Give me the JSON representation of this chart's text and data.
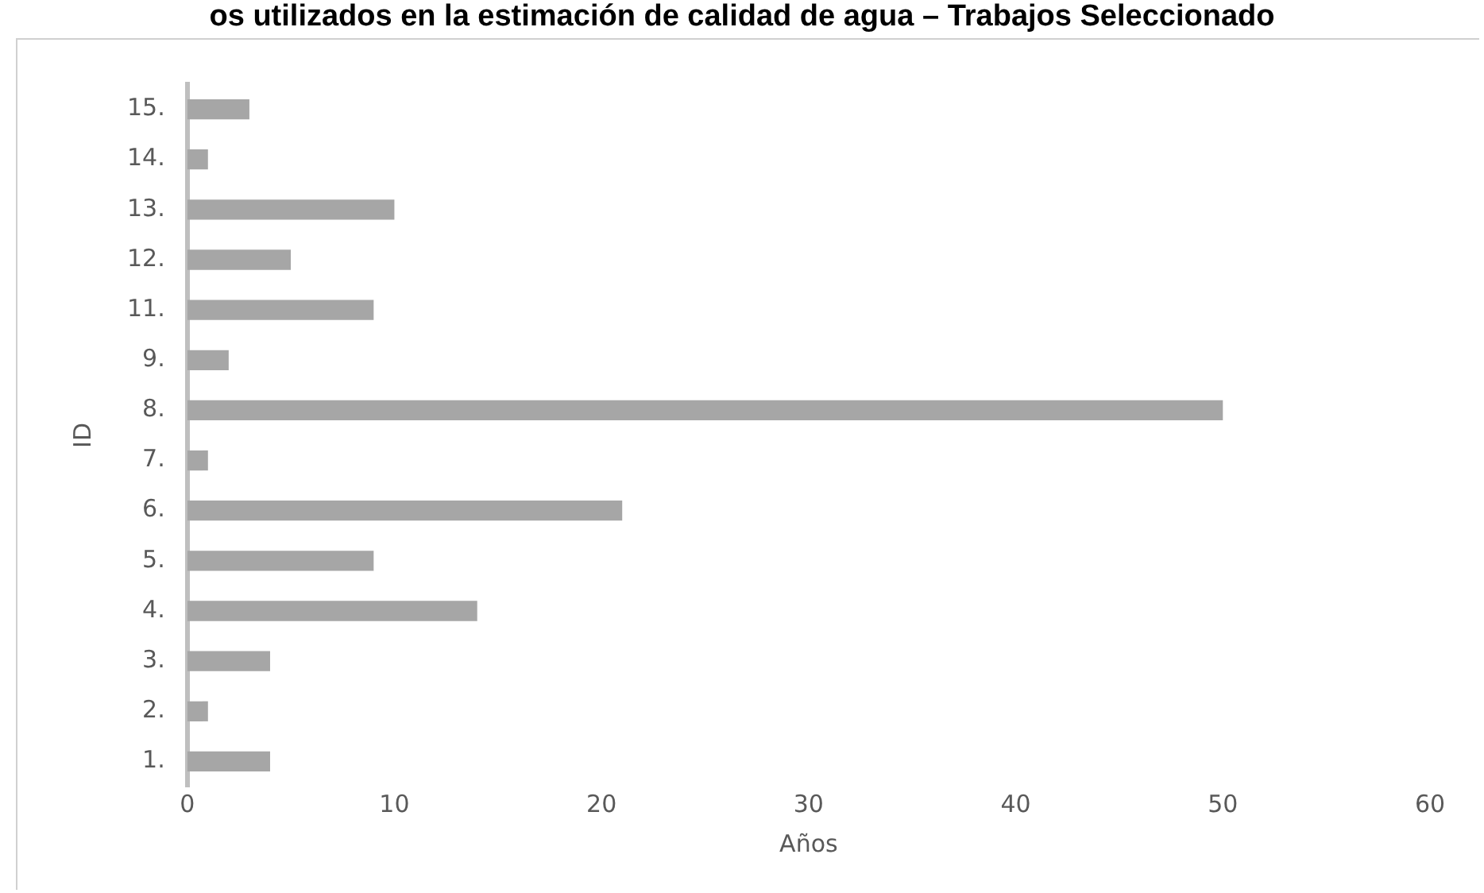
{
  "chart_data": {
    "type": "bar",
    "orientation": "horizontal",
    "title": "os utilizados en la estimación de calidad de agua – Trabajos Seleccionado",
    "xlabel": "Años",
    "ylabel": "ID",
    "categories": [
      "15.",
      "14.",
      "13.",
      "12.",
      "11.",
      "9.",
      "8.",
      "7.",
      "6.",
      "5.",
      "4.",
      "3.",
      "2.",
      "1."
    ],
    "values": [
      3,
      1,
      10,
      5,
      9,
      2,
      50,
      1,
      21,
      9,
      14,
      4,
      1,
      4
    ],
    "color": "#a6a6a6",
    "xlim": [
      0,
      60
    ],
    "xticks": [
      0,
      10,
      20,
      30,
      40,
      50,
      60
    ],
    "grid": false,
    "legend": false
  }
}
